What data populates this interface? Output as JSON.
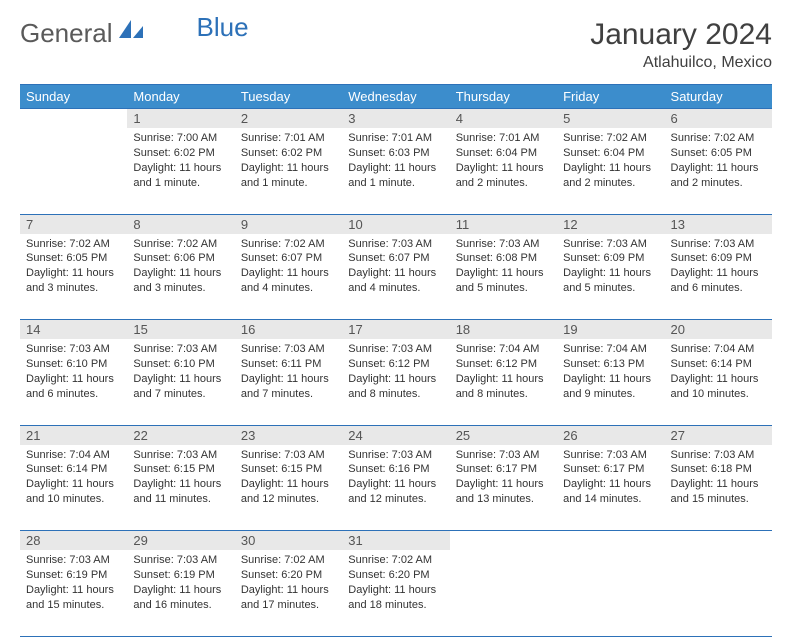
{
  "logo": {
    "part1": "General",
    "part2": "Blue"
  },
  "title": {
    "month": "January 2024",
    "location": "Atlahuilco, Mexico"
  },
  "weekdays": [
    "Sunday",
    "Monday",
    "Tuesday",
    "Wednesday",
    "Thursday",
    "Friday",
    "Saturday"
  ],
  "colors": {
    "header_bg": "#3c8dcc",
    "border": "#2d71b8",
    "daynum_bg": "#e8e8e8",
    "text": "#333333",
    "logo_gray": "#5a5a5a",
    "logo_blue": "#2d71b8"
  },
  "weeks": [
    [
      null,
      {
        "n": "1",
        "sr": "7:00 AM",
        "ss": "6:02 PM",
        "dl": "11 hours and 1 minute."
      },
      {
        "n": "2",
        "sr": "7:01 AM",
        "ss": "6:02 PM",
        "dl": "11 hours and 1 minute."
      },
      {
        "n": "3",
        "sr": "7:01 AM",
        "ss": "6:03 PM",
        "dl": "11 hours and 1 minute."
      },
      {
        "n": "4",
        "sr": "7:01 AM",
        "ss": "6:04 PM",
        "dl": "11 hours and 2 minutes."
      },
      {
        "n": "5",
        "sr": "7:02 AM",
        "ss": "6:04 PM",
        "dl": "11 hours and 2 minutes."
      },
      {
        "n": "6",
        "sr": "7:02 AM",
        "ss": "6:05 PM",
        "dl": "11 hours and 2 minutes."
      }
    ],
    [
      {
        "n": "7",
        "sr": "7:02 AM",
        "ss": "6:05 PM",
        "dl": "11 hours and 3 minutes."
      },
      {
        "n": "8",
        "sr": "7:02 AM",
        "ss": "6:06 PM",
        "dl": "11 hours and 3 minutes."
      },
      {
        "n": "9",
        "sr": "7:02 AM",
        "ss": "6:07 PM",
        "dl": "11 hours and 4 minutes."
      },
      {
        "n": "10",
        "sr": "7:03 AM",
        "ss": "6:07 PM",
        "dl": "11 hours and 4 minutes."
      },
      {
        "n": "11",
        "sr": "7:03 AM",
        "ss": "6:08 PM",
        "dl": "11 hours and 5 minutes."
      },
      {
        "n": "12",
        "sr": "7:03 AM",
        "ss": "6:09 PM",
        "dl": "11 hours and 5 minutes."
      },
      {
        "n": "13",
        "sr": "7:03 AM",
        "ss": "6:09 PM",
        "dl": "11 hours and 6 minutes."
      }
    ],
    [
      {
        "n": "14",
        "sr": "7:03 AM",
        "ss": "6:10 PM",
        "dl": "11 hours and 6 minutes."
      },
      {
        "n": "15",
        "sr": "7:03 AM",
        "ss": "6:10 PM",
        "dl": "11 hours and 7 minutes."
      },
      {
        "n": "16",
        "sr": "7:03 AM",
        "ss": "6:11 PM",
        "dl": "11 hours and 7 minutes."
      },
      {
        "n": "17",
        "sr": "7:03 AM",
        "ss": "6:12 PM",
        "dl": "11 hours and 8 minutes."
      },
      {
        "n": "18",
        "sr": "7:04 AM",
        "ss": "6:12 PM",
        "dl": "11 hours and 8 minutes."
      },
      {
        "n": "19",
        "sr": "7:04 AM",
        "ss": "6:13 PM",
        "dl": "11 hours and 9 minutes."
      },
      {
        "n": "20",
        "sr": "7:04 AM",
        "ss": "6:14 PM",
        "dl": "11 hours and 10 minutes."
      }
    ],
    [
      {
        "n": "21",
        "sr": "7:04 AM",
        "ss": "6:14 PM",
        "dl": "11 hours and 10 minutes."
      },
      {
        "n": "22",
        "sr": "7:03 AM",
        "ss": "6:15 PM",
        "dl": "11 hours and 11 minutes."
      },
      {
        "n": "23",
        "sr": "7:03 AM",
        "ss": "6:15 PM",
        "dl": "11 hours and 12 minutes."
      },
      {
        "n": "24",
        "sr": "7:03 AM",
        "ss": "6:16 PM",
        "dl": "11 hours and 12 minutes."
      },
      {
        "n": "25",
        "sr": "7:03 AM",
        "ss": "6:17 PM",
        "dl": "11 hours and 13 minutes."
      },
      {
        "n": "26",
        "sr": "7:03 AM",
        "ss": "6:17 PM",
        "dl": "11 hours and 14 minutes."
      },
      {
        "n": "27",
        "sr": "7:03 AM",
        "ss": "6:18 PM",
        "dl": "11 hours and 15 minutes."
      }
    ],
    [
      {
        "n": "28",
        "sr": "7:03 AM",
        "ss": "6:19 PM",
        "dl": "11 hours and 15 minutes."
      },
      {
        "n": "29",
        "sr": "7:03 AM",
        "ss": "6:19 PM",
        "dl": "11 hours and 16 minutes."
      },
      {
        "n": "30",
        "sr": "7:02 AM",
        "ss": "6:20 PM",
        "dl": "11 hours and 17 minutes."
      },
      {
        "n": "31",
        "sr": "7:02 AM",
        "ss": "6:20 PM",
        "dl": "11 hours and 18 minutes."
      },
      null,
      null,
      null
    ]
  ],
  "labels": {
    "sunrise": "Sunrise: ",
    "sunset": "Sunset: ",
    "daylight": "Daylight: "
  }
}
